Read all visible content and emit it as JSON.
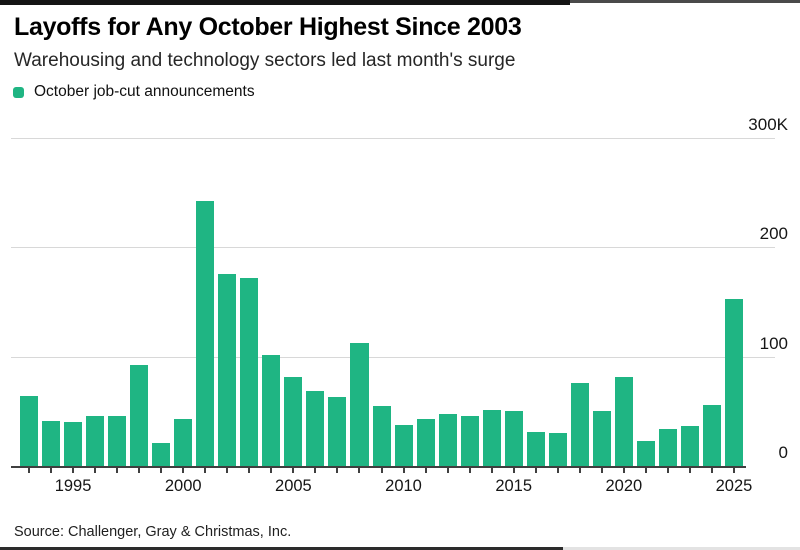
{
  "header": {
    "title": "Layoffs for Any October Highest Since 2003",
    "subtitle": "Warehousing and technology sectors led last month's surge",
    "legend_label": "October job-cut announcements"
  },
  "source_line": "Source: Challenger, Gray & Christmas, Inc.",
  "colors": {
    "bar_green": "#1fb583",
    "gridline": "#d8d8d8",
    "axis": "#3f3f3f"
  },
  "chart_data": {
    "type": "bar",
    "title": "Layoffs for Any October Highest Since 2003",
    "subtitle": "Warehousing and technology sectors led last month's surge",
    "legend": [
      "October job-cut announcements"
    ],
    "legend_position": "top-left",
    "grid": true,
    "unit": "thousands of announced job cuts",
    "ylim": [
      0,
      300
    ],
    "x": [
      1993,
      1994,
      1995,
      1996,
      1997,
      1998,
      1999,
      2000,
      2001,
      2002,
      2003,
      2004,
      2005,
      2006,
      2007,
      2008,
      2009,
      2010,
      2011,
      2012,
      2013,
      2014,
      2015,
      2016,
      2017,
      2018,
      2019,
      2020,
      2021,
      2022,
      2023,
      2024,
      2025
    ],
    "values": [
      64,
      41,
      40,
      46,
      46,
      92,
      21,
      43,
      242,
      176,
      172,
      102,
      81,
      69,
      63,
      113,
      55,
      38,
      43,
      48,
      46,
      51,
      50,
      31,
      30,
      76,
      50,
      81,
      23,
      34,
      37,
      56,
      153
    ],
    "y_ticks": [
      {
        "value": 300,
        "label": "300K"
      },
      {
        "value": 200,
        "label": "200"
      },
      {
        "value": 100,
        "label": "100"
      },
      {
        "value": 0,
        "label": "0"
      }
    ],
    "x_ticks": [
      "1995",
      "2000",
      "2005",
      "2010",
      "2015",
      "2020",
      "2025"
    ]
  }
}
